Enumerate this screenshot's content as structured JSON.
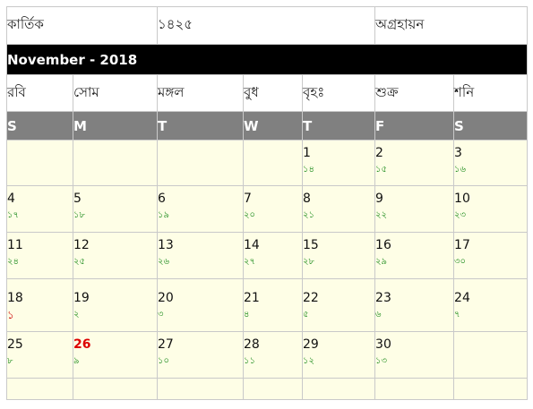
{
  "header": {
    "prev_bengali_month": "কার্তিক",
    "bengali_year": "১৪২৫",
    "next_bengali_month": "অগ্রহায়ন",
    "month_title": "November - 2018"
  },
  "bengali_weekdays": [
    "রবি",
    "সোম",
    "মঙ্গল",
    "বুধ",
    "বৃহঃ",
    "শুক্র",
    "শনি"
  ],
  "english_weekdays": [
    "S",
    "M",
    "T",
    "W",
    "T",
    "F",
    "S"
  ],
  "weeks": [
    [
      {
        "en": "",
        "bn": ""
      },
      {
        "en": "",
        "bn": ""
      },
      {
        "en": "",
        "bn": ""
      },
      {
        "en": "",
        "bn": ""
      },
      {
        "en": "1",
        "bn": "১৪"
      },
      {
        "en": "2",
        "bn": "১৫"
      },
      {
        "en": "3",
        "bn": "১৬"
      }
    ],
    [
      {
        "en": "4",
        "bn": "১৭"
      },
      {
        "en": "5",
        "bn": "১৮"
      },
      {
        "en": "6",
        "bn": "১৯"
      },
      {
        "en": "7",
        "bn": "২০"
      },
      {
        "en": "8",
        "bn": "২১"
      },
      {
        "en": "9",
        "bn": "২২"
      },
      {
        "en": "10",
        "bn": "২৩"
      }
    ],
    [
      {
        "en": "11",
        "bn": "২৪"
      },
      {
        "en": "12",
        "bn": "২৫"
      },
      {
        "en": "13",
        "bn": "২৬"
      },
      {
        "en": "14",
        "bn": "২৭"
      },
      {
        "en": "15",
        "bn": "২৮"
      },
      {
        "en": "16",
        "bn": "২৯"
      },
      {
        "en": "17",
        "bn": "৩০"
      }
    ],
    [
      {
        "en": "18",
        "bn": "১",
        "bn_highlight": true
      },
      {
        "en": "19",
        "bn": "২"
      },
      {
        "en": "20",
        "bn": "৩"
      },
      {
        "en": "21",
        "bn": "৪"
      },
      {
        "en": "22",
        "bn": "৫"
      },
      {
        "en": "23",
        "bn": "৬"
      },
      {
        "en": "24",
        "bn": "৭"
      }
    ],
    [
      {
        "en": "25",
        "bn": "৮"
      },
      {
        "en": "26",
        "bn": "৯",
        "today": true
      },
      {
        "en": "27",
        "bn": "১০"
      },
      {
        "en": "28",
        "bn": "১১"
      },
      {
        "en": "29",
        "bn": "১২"
      },
      {
        "en": "30",
        "bn": "১৩"
      },
      {
        "en": "",
        "bn": ""
      }
    ],
    [
      {
        "en": "",
        "bn": ""
      },
      {
        "en": "",
        "bn": ""
      },
      {
        "en": "",
        "bn": ""
      },
      {
        "en": "",
        "bn": ""
      },
      {
        "en": "",
        "bn": ""
      },
      {
        "en": "",
        "bn": ""
      },
      {
        "en": "",
        "bn": ""
      }
    ]
  ],
  "colors": {
    "month_bar": "#000000",
    "weekday_bar": "#808080",
    "cell_bg": "#fefee6",
    "bengali_date": "#1a8a1a",
    "highlight": "#dd0000"
  }
}
